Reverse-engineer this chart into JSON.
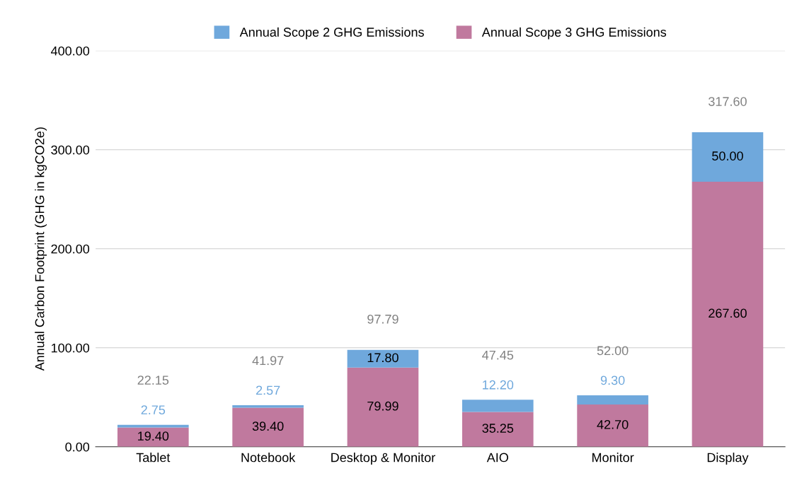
{
  "chart_data": {
    "type": "bar",
    "stacked": true,
    "ylabel": "Annual Carbon Footprint (GHG in kgCO2e)",
    "categories": [
      "Tablet",
      "Notebook",
      "Desktop & Monitor",
      "AIO",
      "Monitor",
      "Display"
    ],
    "series": [
      {
        "name": "Annual Scope 3 GHG Emissions",
        "color": "#c0799e",
        "values": [
          19.4,
          39.4,
          79.99,
          35.25,
          42.7,
          267.6
        ],
        "value_labels": [
          "19.40",
          "39.40",
          "79.99",
          "35.25",
          "42.70",
          "267.60"
        ]
      },
      {
        "name": "Annual Scope 2 GHG Emissions",
        "color": "#6fa8dc",
        "values": [
          2.75,
          2.57,
          17.8,
          12.2,
          9.3,
          50.0
        ],
        "value_labels": [
          "2.75",
          "2.57",
          "17.80",
          "12.20",
          "9.30",
          "50.00"
        ]
      }
    ],
    "totals": [
      "22.15",
      "41.97",
      "97.79",
      "47.45",
      "52.00",
      "317.60"
    ],
    "ylim": [
      0,
      400
    ],
    "yticks": [
      {
        "value": 0,
        "label": "0.00"
      },
      {
        "value": 100,
        "label": "100.00"
      },
      {
        "value": 200,
        "label": "200.00"
      },
      {
        "value": 300,
        "label": "300.00"
      },
      {
        "value": 400,
        "label": "400.00"
      }
    ],
    "grid": "y",
    "legend": "top"
  }
}
